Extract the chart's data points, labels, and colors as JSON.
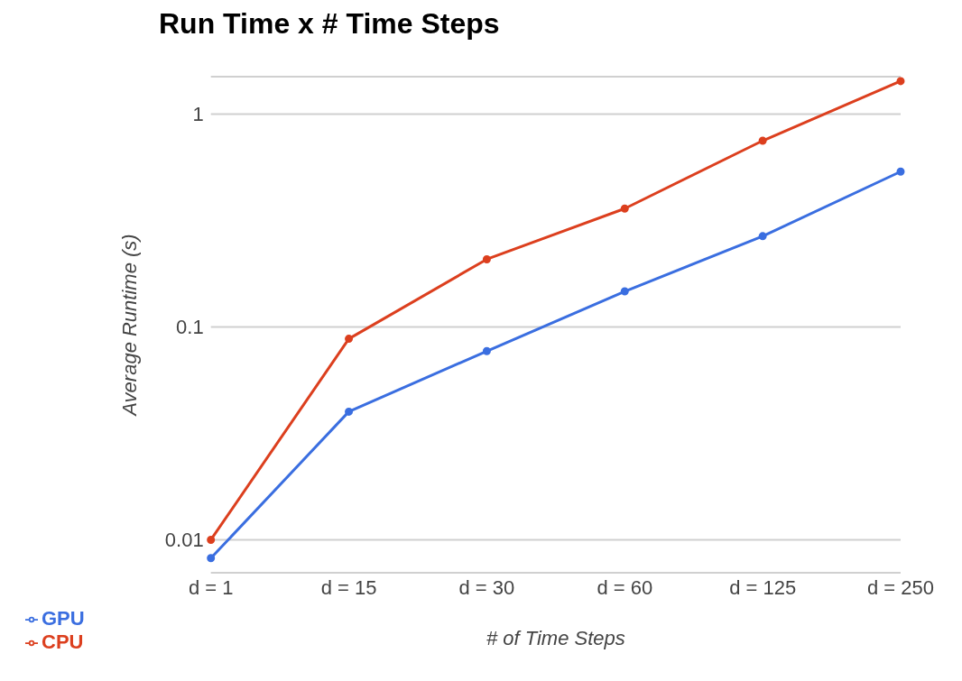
{
  "chart_data": {
    "type": "line",
    "title": "Run Time x # Time Steps",
    "xlabel": "# of Time Steps",
    "ylabel": "Average Runtime (s)",
    "categories": [
      "d = 1",
      "d = 15",
      "d = 30",
      "d = 60",
      "d = 125",
      "d = 250"
    ],
    "series": [
      {
        "name": "GPU",
        "color": "#3a6ee0",
        "values": [
          0.0082,
          0.04,
          0.077,
          0.147,
          0.267,
          0.537
        ]
      },
      {
        "name": "CPU",
        "color": "#dc3f1e",
        "values": [
          0.01,
          0.088,
          0.208,
          0.36,
          0.75,
          1.43
        ]
      }
    ],
    "log": "y",
    "ylim": [
      0.007,
      1.5
    ],
    "yticks": [
      0.01,
      0.1,
      1
    ],
    "grid": "y",
    "legend": "bottom left",
    "marker": "circle",
    "line_style": "solid"
  }
}
